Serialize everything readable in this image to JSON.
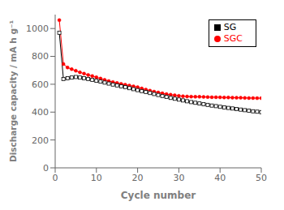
{
  "chart_data": {
    "type": "line",
    "xlabel": "Cycle number",
    "ylabel": "Discharge capacity / mA h g⁻¹",
    "x": [
      1,
      2,
      3,
      4,
      5,
      6,
      7,
      8,
      9,
      10,
      11,
      12,
      13,
      14,
      15,
      16,
      17,
      18,
      19,
      20,
      21,
      22,
      23,
      24,
      25,
      26,
      27,
      28,
      29,
      30,
      31,
      32,
      33,
      34,
      35,
      36,
      37,
      38,
      39,
      40,
      41,
      42,
      43,
      44,
      45,
      46,
      47,
      48,
      49,
      50
    ],
    "series": [
      {
        "name": "SGC",
        "color": "#ff0000",
        "marker": "circle",
        "values": [
          1060,
          745,
          720,
          708,
          697,
          686,
          676,
          667,
          659,
          650,
          641,
          632,
          623,
          616,
          609,
          603,
          597,
          591,
          585,
          579,
          570,
          562,
          554,
          547,
          541,
          535,
          529,
          525,
          521,
          517,
          514,
          512,
          511,
          510,
          510,
          509,
          508,
          507,
          507,
          506,
          505,
          505,
          504,
          503,
          503,
          502,
          501,
          501,
          500,
          500
        ]
      },
      {
        "name": "SG",
        "color": "#000000",
        "marker": "square",
        "values": [
          970,
          638,
          643,
          648,
          652,
          648,
          643,
          638,
          632,
          625,
          619,
          612,
          605,
          598,
          592,
          585,
          579,
          572,
          565,
          558,
          551,
          544,
          537,
          530,
          523,
          516,
          509,
          502,
          496,
          490,
          484,
          478,
          472,
          467,
          462,
          457,
          452,
          447,
          443,
          438,
          434,
          430,
          426,
          422,
          418,
          414,
          410,
          406,
          403,
          400
        ]
      }
    ],
    "xlim": [
      0,
      50
    ],
    "ylim": [
      0,
      1100
    ],
    "xticks": [
      0,
      10,
      20,
      30,
      40,
      50
    ],
    "yticks": [
      0,
      200,
      400,
      600,
      800,
      1000
    ],
    "grid": false,
    "legend": "upper right"
  }
}
